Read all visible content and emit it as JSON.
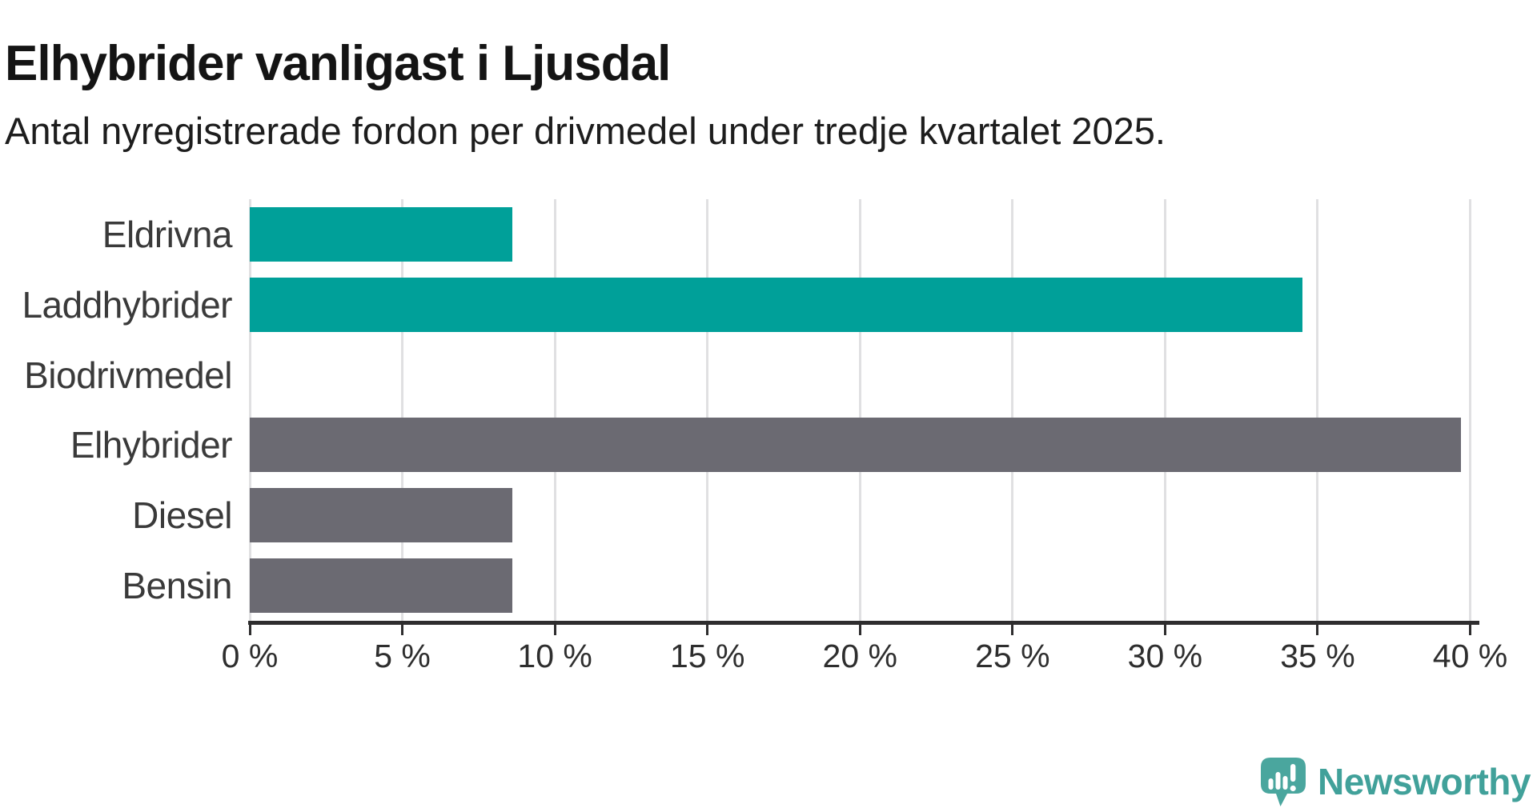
{
  "title": "Elhybrider vanligast i Ljusdal",
  "subtitle": "Antal nyregistrerade fordon per drivmedel under tredje kvartalet 2025.",
  "chart_data": {
    "type": "bar",
    "orientation": "horizontal",
    "title": "Elhybrider vanligast i Ljusdal",
    "subtitle": "Antal nyregistrerade fordon per drivmedel under tredje kvartalet 2025.",
    "categories": [
      "Eldrivna",
      "Laddhybrider",
      "Biodrivmedel",
      "Elhybrider",
      "Diesel",
      "Bensin"
    ],
    "values": [
      8.6,
      34.5,
      0,
      39.7,
      8.6,
      8.6
    ],
    "unit": "%",
    "xlim": [
      0,
      40
    ],
    "x_ticks": [
      0,
      5,
      10,
      15,
      20,
      25,
      30,
      35,
      40
    ],
    "x_tick_labels": [
      "0 %",
      "5 %",
      "10 %",
      "15 %",
      "20 %",
      "25 %",
      "30 %",
      "35 %",
      "40 %"
    ],
    "bar_colors": [
      "#00a099",
      "#00a099",
      "#6b6a72",
      "#6b6a72",
      "#6b6a72",
      "#6b6a72"
    ],
    "grid": true,
    "legend": "none",
    "xlabel": "",
    "ylabel": ""
  },
  "colors": {
    "accent_teal": "#00a099",
    "neutral_gray": "#6b6a72",
    "gridline": "#e0e0e2",
    "axis": "#2e2d2e",
    "logo_teal": "#41a19a",
    "logo_icon_teal": "#4aa69e"
  },
  "branding": {
    "logo_text": "Newsworthy",
    "logo_icon": "newsworthy-speech-bubble-bar-chart-icon"
  }
}
